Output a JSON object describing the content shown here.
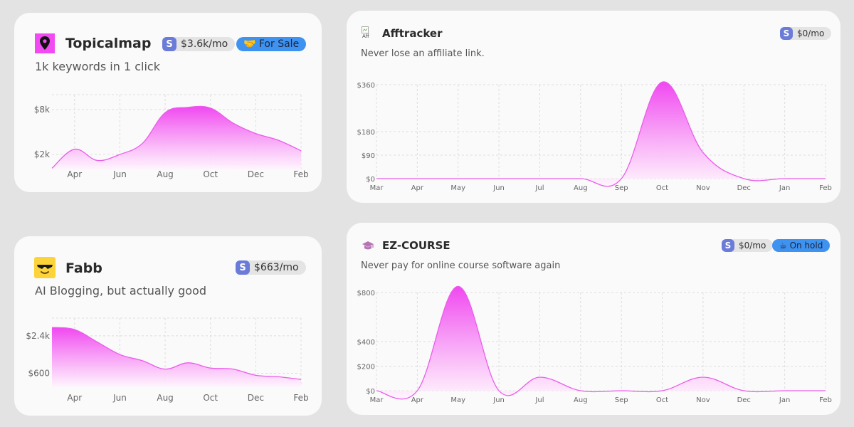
{
  "colors": {
    "fill_top": "#f048f0",
    "fill_bottom": "#fff5fd",
    "line": "#ea5cea",
    "grid": "#dddddd",
    "accent_badge": "#6b7bd8",
    "status_blue": "#3f93f0"
  },
  "cards": [
    {
      "name": "Topicalmap",
      "description": "1k keywords in 1 click",
      "icon": "map-pin-icon",
      "revenue_icon": "stripe-s",
      "revenue_letter": "S",
      "revenue": "$3.6k/mo",
      "status": "🤝 For Sale",
      "chart_data": {
        "type": "area",
        "x": [
          "Mar",
          "Apr",
          "May",
          "Jun",
          "Jul",
          "Aug",
          "Sep",
          "Oct",
          "Nov",
          "Dec",
          "Jan",
          "Feb"
        ],
        "values": [
          150,
          2700,
          1200,
          2000,
          3500,
          7600,
          8300,
          8200,
          6200,
          4800,
          3900,
          2500
        ],
        "xticks": [
          "Apr",
          "Jun",
          "Aug",
          "Oct",
          "Dec",
          "Feb"
        ],
        "yticks": [
          2000,
          8000
        ],
        "ytick_labels": [
          "$2k",
          "$8k"
        ],
        "ylim": [
          0,
          10000
        ]
      }
    },
    {
      "name": "Afftracker",
      "description": "Never lose an affiliate link.",
      "icon": "broken-image-icon",
      "logo_alt": "Aff",
      "revenue_icon": "stripe-s",
      "revenue_letter": "S",
      "revenue": "$0/mo",
      "chart_data": {
        "type": "area",
        "x": [
          "Mar",
          "Apr",
          "May",
          "Jun",
          "Jul",
          "Aug",
          "Sep",
          "Oct",
          "Nov",
          "Dec",
          "Jan",
          "Feb"
        ],
        "values": [
          0,
          0,
          0,
          0,
          0,
          0,
          0,
          370,
          100,
          0,
          0,
          0
        ],
        "xticks": [
          "Mar",
          "Apr",
          "May",
          "Jun",
          "Jul",
          "Aug",
          "Sep",
          "Oct",
          "Nov",
          "Dec",
          "Jan",
          "Feb"
        ],
        "yticks": [
          0,
          90,
          180,
          360
        ],
        "ytick_labels": [
          "$0",
          "$90",
          "$180",
          "$360"
        ],
        "ylim": [
          0,
          360
        ]
      }
    },
    {
      "name": "Fabb",
      "description": "AI Blogging, but actually good",
      "icon": "sunglasses-emoji-icon",
      "revenue_icon": "stripe-s",
      "revenue_letter": "S",
      "revenue": "$663/mo",
      "chart_data": {
        "type": "area",
        "x": [
          "Mar",
          "Apr",
          "May",
          "Jun",
          "Jul",
          "Aug",
          "Sep",
          "Oct",
          "Nov",
          "Dec",
          "Jan",
          "Feb"
        ],
        "values": [
          2800,
          2700,
          2100,
          1500,
          1200,
          800,
          1100,
          850,
          800,
          500,
          430,
          300
        ],
        "xticks": [
          "Apr",
          "Jun",
          "Aug",
          "Oct",
          "Dec",
          "Feb"
        ],
        "yticks": [
          600,
          2400
        ],
        "ytick_labels": [
          "$600",
          "$2.4k"
        ],
        "ylim": [
          0,
          3250
        ]
      }
    },
    {
      "name": "EZ-COURSE",
      "description": "Never pay for online course software again",
      "icon": "graduation-cap-icon",
      "revenue_icon": "stripe-s",
      "revenue_letter": "S",
      "revenue": "$0/mo",
      "status": "☕ On hold",
      "chart_data": {
        "type": "area",
        "x": [
          "Mar",
          "Apr",
          "May",
          "Jun",
          "Jul",
          "Aug",
          "Sep",
          "Oct",
          "Nov",
          "Dec",
          "Jan",
          "Feb"
        ],
        "values": [
          0,
          0,
          850,
          0,
          110,
          0,
          0,
          0,
          110,
          0,
          0,
          0
        ],
        "xticks": [
          "Mar",
          "Apr",
          "May",
          "Jun",
          "Jul",
          "Aug",
          "Sep",
          "Oct",
          "Nov",
          "Dec",
          "Jan",
          "Feb"
        ],
        "yticks": [
          0,
          200,
          400,
          800
        ],
        "ytick_labels": [
          "$0",
          "$200",
          "$400",
          "$800"
        ],
        "ylim": [
          0,
          800
        ]
      }
    }
  ]
}
